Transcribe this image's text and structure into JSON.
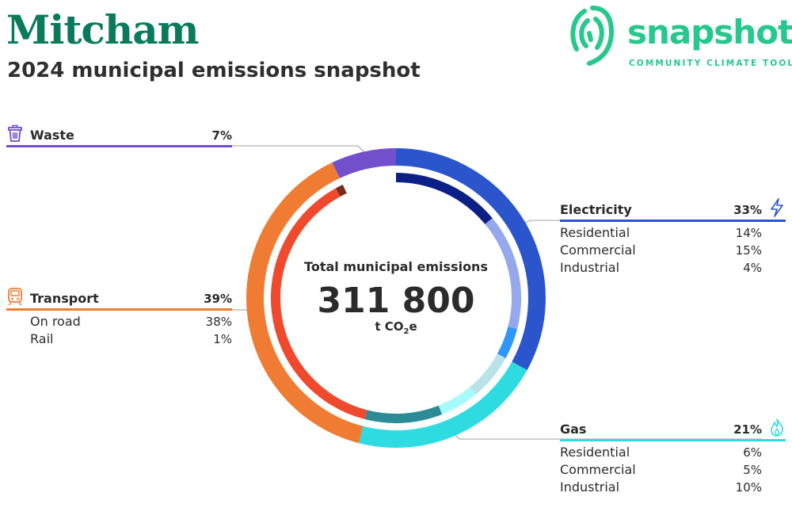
{
  "header": {
    "title": "Mitcham",
    "subtitle": "2024 municipal emissions snapshot"
  },
  "logo": {
    "word": "snapshot",
    "tagline": "COMMUNITY CLIMATE TOOL",
    "icon": "snapshot-swirl-icon",
    "color": "#26c88e"
  },
  "center": {
    "label": "Total municipal emissions",
    "total": "311 800",
    "unit_prefix": "t CO",
    "unit_sub": "2",
    "unit_suffix": "e"
  },
  "chart_data": {
    "type": "pie",
    "title": "Total municipal emissions",
    "total": 311800,
    "unit": "t CO2e",
    "series": [
      {
        "name": "Electricity",
        "value": 33,
        "label": "33%",
        "color": "#2a55cc",
        "icon": "lightning-icon",
        "breakdown": [
          {
            "name": "Residential",
            "value": 14,
            "label": "14%",
            "color": "#0c1f86"
          },
          {
            "name": "Commercial",
            "value": 15,
            "label": "15%",
            "color": "#95a8ec"
          },
          {
            "name": "Industrial",
            "value": 4,
            "label": "4%",
            "color": "#2f97ff"
          }
        ]
      },
      {
        "name": "Gas",
        "value": 21,
        "label": "21%",
        "color": "#2edbe0",
        "icon": "flame-icon",
        "breakdown": [
          {
            "name": "Residential",
            "value": 6,
            "label": "6%",
            "color": "#b9e3e6"
          },
          {
            "name": "Commercial",
            "value": 5,
            "label": "5%",
            "color": "#a5fbfb"
          },
          {
            "name": "Industrial",
            "value": 10,
            "label": "10%",
            "color": "#2b8c98"
          }
        ]
      },
      {
        "name": "Transport",
        "value": 39,
        "label": "39%",
        "color": "#f07b32",
        "icon": "train-icon",
        "breakdown": [
          {
            "name": "On road",
            "value": 38,
            "label": "38%",
            "color": "#ef4a2e"
          },
          {
            "name": "Rail",
            "value": 1,
            "label": "1%",
            "color": "#7a2a18"
          }
        ]
      },
      {
        "name": "Waste",
        "value": 7,
        "label": "7%",
        "color": "#7250cc",
        "icon": "trash-bin-icon",
        "breakdown": []
      }
    ]
  }
}
